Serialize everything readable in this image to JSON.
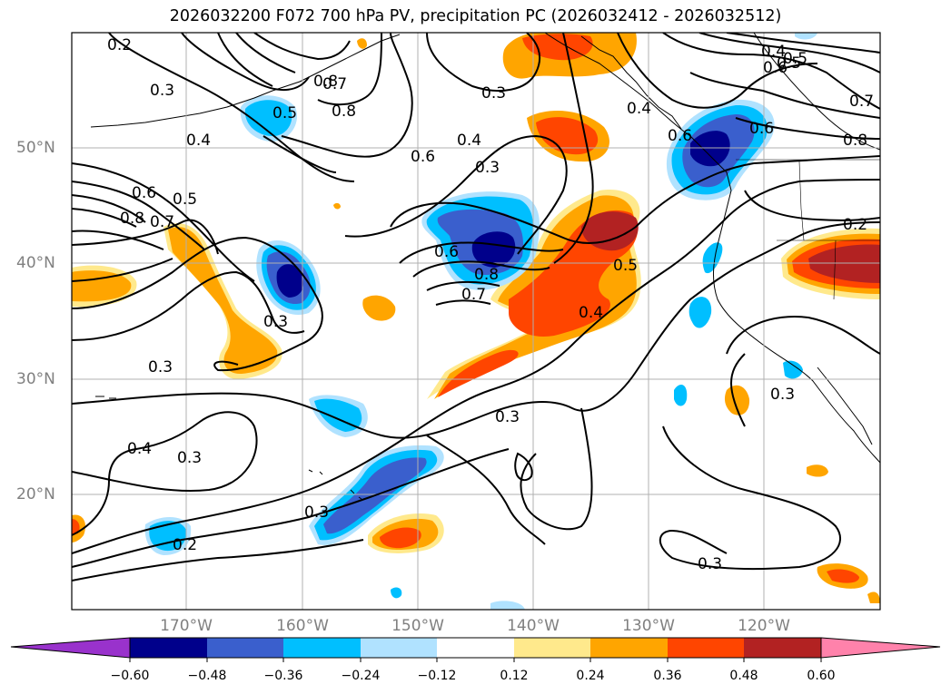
{
  "title": "2026032200 F072 700 hPa PV, precipitation PC (2026032412 - 2026032512)",
  "lat_labels": [
    "20°N",
    "30°N",
    "40°N",
    "50°N"
  ],
  "lon_labels": [
    "170°W",
    "160°W",
    "150°W",
    "140°W",
    "130°W",
    "120°W"
  ],
  "contour_labels": [
    "0.2",
    "0.3",
    "0.4",
    "0.5",
    "0.6",
    "0.7",
    "0.8",
    "0.6",
    "0.4",
    "0.3",
    "0.5",
    "0.6",
    "0.8",
    "0.7",
    "0.3",
    "0.4",
    "0.5",
    "0.6",
    "0.2",
    "0.3",
    "0.4",
    "0.3",
    "0.3",
    "0.2",
    "0.3",
    "0.3",
    "0.7",
    "0.8",
    "0.4",
    "0.5",
    "0.6",
    "0.8",
    "0.7",
    "0.3",
    "0.3",
    "0.4",
    "0.6",
    "0.8",
    "0.5"
  ],
  "colorbar": {
    "ticks": [
      "−0.60",
      "−0.48",
      "−0.36",
      "−0.24",
      "−0.12",
      "0.12",
      "0.24",
      "0.36",
      "0.48",
      "0.60"
    ],
    "colors": [
      "#9932cc",
      "#00008b",
      "#3a5fcd",
      "#00bfff",
      "#b0e2ff",
      "#ffffff",
      "#ffe98c",
      "#ffa500",
      "#ff4500",
      "#b22222",
      "#ff82ab"
    ]
  },
  "palette": {
    "neg060": "#00008b",
    "neg048": "#3a5fcd",
    "neg036": "#00bfff",
    "neg024": "#b0e2ff",
    "pos024": "#ffe98c",
    "pos036": "#ffa500",
    "pos048": "#ff4500",
    "pos060": "#b22222"
  }
}
